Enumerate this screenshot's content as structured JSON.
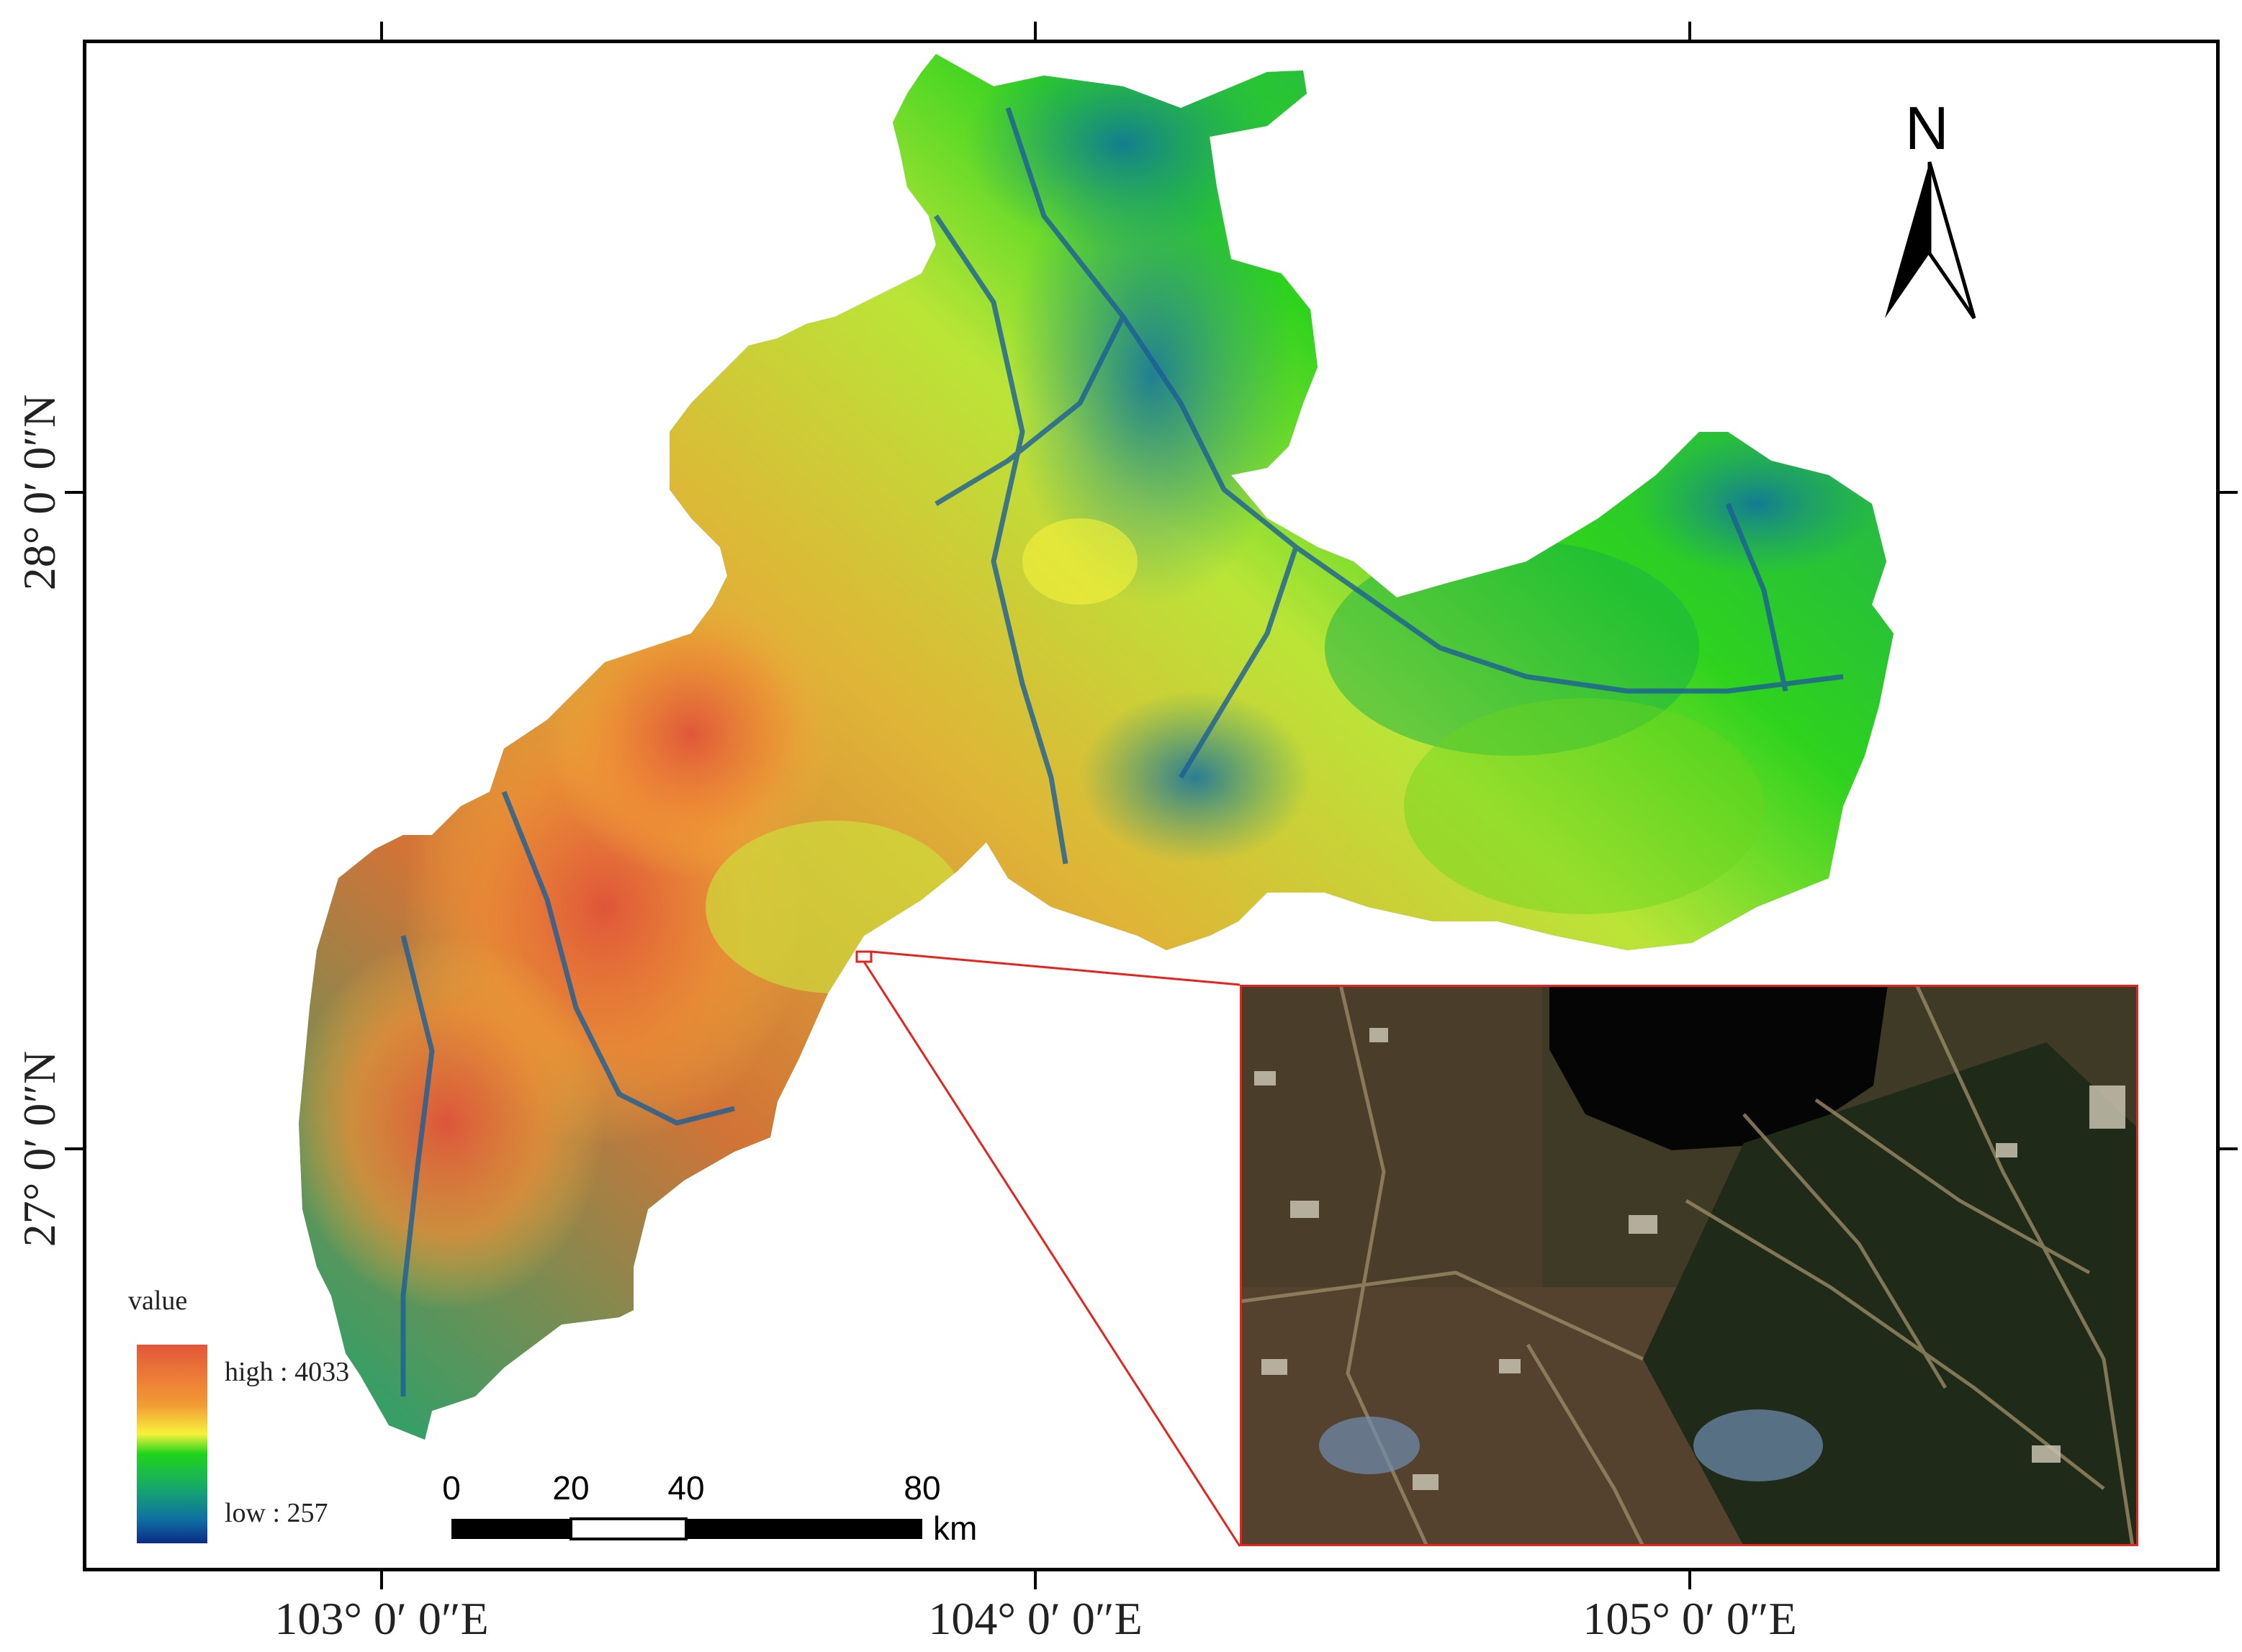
{
  "map": {
    "north_label": "N",
    "lon_labels": [
      "103° 0′ 0″E",
      "104° 0′ 0″E",
      "105° 0′ 0″E"
    ],
    "lat_labels": [
      "28° 0′ 0″N",
      "27° 0′ 0″N"
    ]
  },
  "legend": {
    "title": "value",
    "high_label": "high : 4033",
    "low_label": "low : 257",
    "colors": [
      "#e3563a",
      "#f29a34",
      "#f7f23a",
      "#20d41a",
      "#17a96a",
      "#0f6fa3",
      "#0b2c86"
    ]
  },
  "scale_bar": {
    "ticks": [
      "0",
      "20",
      "40",
      "80"
    ],
    "unit": "km"
  },
  "inset": {
    "border_color": "#e2261f"
  }
}
